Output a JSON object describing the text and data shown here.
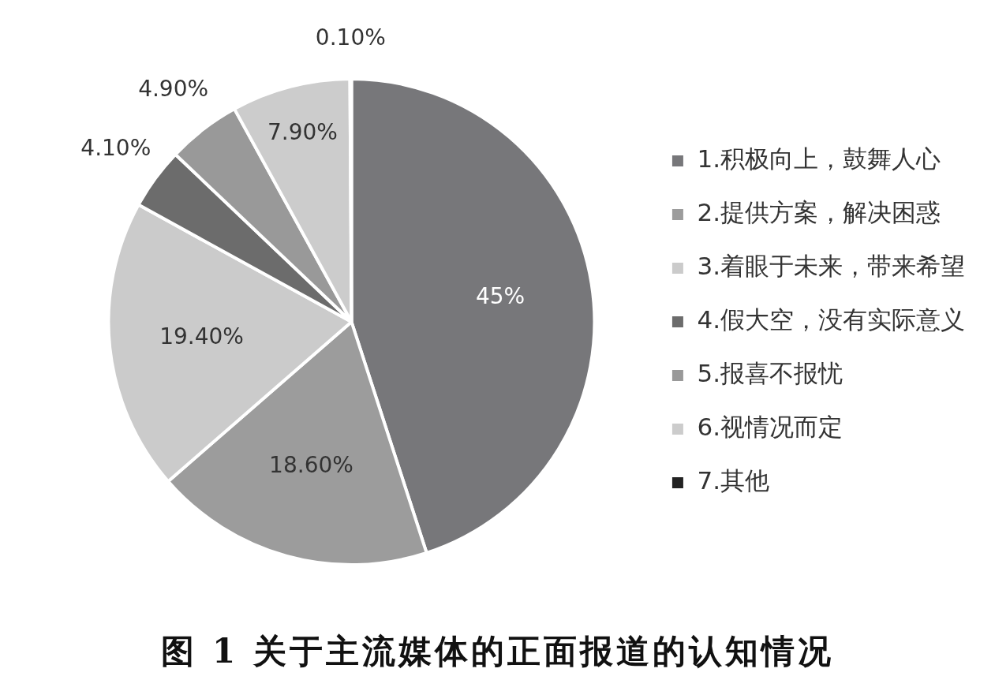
{
  "chart_data": {
    "type": "pie",
    "title": "图 1 关于主流媒体的正面报道的认知情况",
    "categories": [
      "1.积极向上，鼓舞人心",
      "2.提供方案，解决困惑",
      "3.着眼于未来，带来希望",
      "4.假大空，没有实际意义",
      "5.报喜不报忧",
      "6.视情况而定",
      "7.其他"
    ],
    "values": [
      45,
      18.6,
      19.4,
      4.1,
      4.9,
      7.9,
      0.1
    ],
    "value_labels": [
      "45%",
      "18.60%",
      "19.40%",
      "4.10%",
      "4.90%",
      "7.90%",
      "0.10%"
    ],
    "colors": [
      "#77777a",
      "#9c9c9c",
      "#cbcbcb",
      "#6c6c6c",
      "#999999",
      "#cccccc",
      "#222222"
    ],
    "legend": "right"
  }
}
